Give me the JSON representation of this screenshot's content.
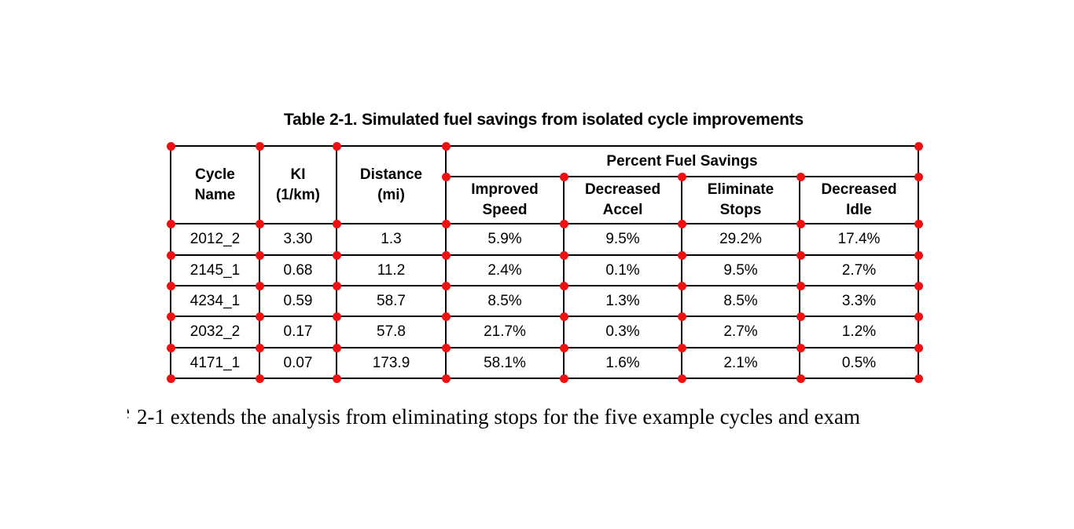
{
  "caption": "Table 2-1. Simulated fuel savings from isolated cycle improvements",
  "table": {
    "group_header": "Percent Fuel Savings",
    "columns": [
      {
        "id": "cycle_name",
        "label": "Cycle\nName"
      },
      {
        "id": "ki",
        "label": "KI\n(1/km)"
      },
      {
        "id": "distance",
        "label": "Distance\n(mi)"
      },
      {
        "id": "improved_speed",
        "label": "Improved\nSpeed"
      },
      {
        "id": "decreased_accel",
        "label": "Decreased\nAccel"
      },
      {
        "id": "eliminate_stops",
        "label": "Eliminate\nStops"
      },
      {
        "id": "decreased_idle",
        "label": "Decreased\nIdle"
      }
    ],
    "rows": [
      [
        "2012_2",
        "3.30",
        "1.3",
        "5.9%",
        "9.5%",
        "29.2%",
        "17.4%"
      ],
      [
        "2145_1",
        "0.68",
        "11.2",
        "2.4%",
        "0.1%",
        "9.5%",
        "2.7%"
      ],
      [
        "4234_1",
        "0.59",
        "58.7",
        "8.5%",
        "1.3%",
        "8.5%",
        "3.3%"
      ],
      [
        "2032_2",
        "0.17",
        "57.8",
        "21.7%",
        "0.3%",
        "2.7%",
        "1.2%"
      ],
      [
        "4171_1",
        "0.07",
        "173.9",
        "58.1%",
        "1.6%",
        "2.1%",
        "0.5%"
      ]
    ]
  },
  "annotations": {
    "dot_color": "#ee1111",
    "line_color": "#000000",
    "dot_count": 58
  },
  "footer": {
    "fragment": "e",
    "text": "2-1 extends the analysis from eliminating stops for the five example cycles and exam"
  }
}
